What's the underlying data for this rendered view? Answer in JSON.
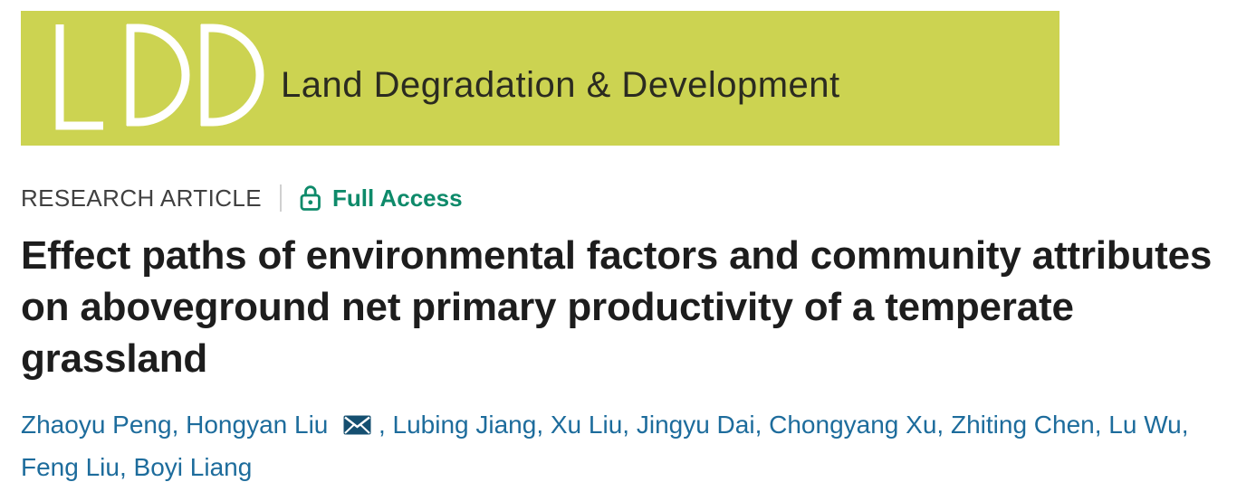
{
  "banner": {
    "logo_acronym": "LDD",
    "journal_name": "Land Degradation & Development",
    "background_color": "#ccd351",
    "logo_color": "#ffffff",
    "text_color": "#2b2b20"
  },
  "meta": {
    "article_type": "RESEARCH ARTICLE",
    "access": {
      "label": "Full Access",
      "icon": "open-lock-icon",
      "color": "#0e8a6a"
    }
  },
  "article": {
    "title": "Effect paths of environmental factors and community attributes on aboveground net primary productivity of a temperate grassland",
    "title_lines": [
      "Effect paths of environmental factors and community attributes",
      "on aboveground net primary productivity of a temperate",
      "grassland"
    ]
  },
  "authors": {
    "separator": ", ",
    "link_color": "#1d6c9c",
    "corresponding_icon": "envelope-icon",
    "list": [
      {
        "name": "Zhaoyu Peng",
        "corresponding": false
      },
      {
        "name": "Hongyan Liu",
        "corresponding": true
      },
      {
        "name": "Lubing Jiang",
        "corresponding": false
      },
      {
        "name": "Xu Liu",
        "corresponding": false
      },
      {
        "name": "Jingyu Dai",
        "corresponding": false
      },
      {
        "name": "Chongyang Xu",
        "corresponding": false
      },
      {
        "name": "Zhiting Chen",
        "corresponding": false
      },
      {
        "name": "Lu Wu",
        "corresponding": false
      },
      {
        "name": "Feng Liu",
        "corresponding": false
      },
      {
        "name": "Boyi Liang",
        "corresponding": false
      }
    ]
  }
}
